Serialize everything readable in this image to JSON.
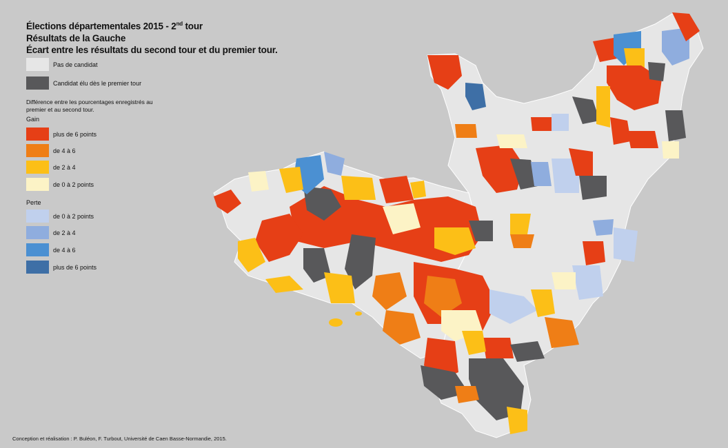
{
  "title": {
    "line1_text": "Élections départementales 2015 - 2",
    "line1_sup": "nd",
    "line1_suffix": " tour",
    "line2": "Résultats de la Gauche",
    "line3": "Écart entre les résultats du second tour et du premier tour."
  },
  "legend": {
    "no_candidate": {
      "label": "Pas de candidat",
      "color": "#e6e6e6"
    },
    "elected_first_round": {
      "label": "Candidat élu dès le premier tour",
      "color": "#58585a"
    },
    "note": "Différence entre les pourcentages enregistrés au premier et au second tour.",
    "gain_title": "Gain",
    "gain": [
      {
        "label": "plus de 6 points",
        "color": "#e63f16"
      },
      {
        "label": "de 4 à 6",
        "color": "#ef7e16"
      },
      {
        "label": "de 2 à 4",
        "color": "#fcbf17"
      },
      {
        "label": "de 0 à 2 points",
        "color": "#fcf3c6"
      }
    ],
    "loss_title": "Perte",
    "loss": [
      {
        "label": "de 0 à 2 points",
        "color": "#c0d0ed"
      },
      {
        "label": "de 2 à 4",
        "color": "#8fadde"
      },
      {
        "label": "de 4 à 6",
        "color": "#4b90d2"
      },
      {
        "label": "plus de 6 points",
        "color": "#3e6fa6"
      }
    ]
  },
  "credit": "Conception et réalisation : P. Buléon, F. Turbout, Université de Caen Basse-Normandie, 2015."
}
